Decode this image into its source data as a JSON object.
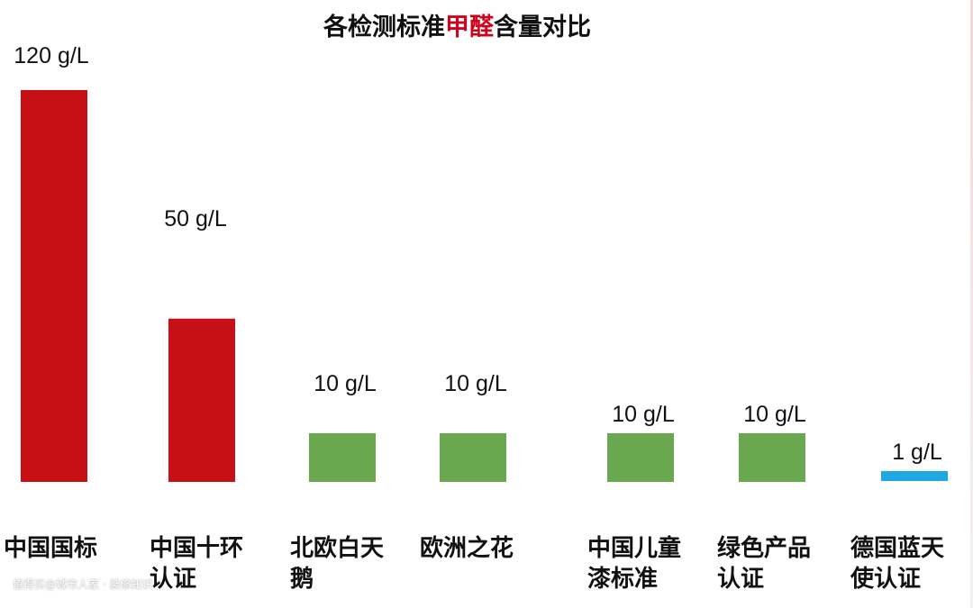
{
  "chart_data": {
    "type": "bar",
    "title": {
      "before": "各检测标准",
      "highlight": "甲醛",
      "after": "含量对比"
    },
    "categories": [
      [
        "中国国标"
      ],
      [
        "中国十环",
        "认证"
      ],
      [
        "北欧白天",
        "鹅"
      ],
      [
        "欧洲之花"
      ],
      [
        "中国儿童",
        "漆标准"
      ],
      [
        "绿色产品",
        "认证"
      ],
      [
        "德国蓝天",
        "使认证"
      ]
    ],
    "values": [
      120,
      50,
      10,
      10,
      10,
      10,
      1
    ],
    "value_labels": [
      "120 g/L",
      "50 g/L",
      "10 g/L",
      "10 g/L",
      "10 g/L",
      "10 g/L",
      "1 g/L"
    ],
    "bar_colors": [
      "#c70f16",
      "#c70f16",
      "#6aa84f",
      "#6aa84f",
      "#6aa84f",
      "#6aa84f",
      "#1ea7e1"
    ],
    "ylim": [
      0,
      120
    ],
    "grid": false,
    "legend": "none"
  },
  "watermark": "值得买@城市人家 · 装修知识"
}
